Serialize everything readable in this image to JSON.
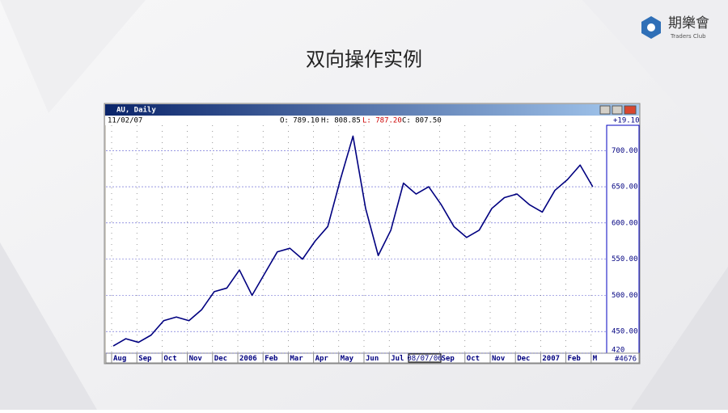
{
  "slide": {
    "title": "双向操作实例",
    "logo_name": "期樂會",
    "logo_tagline": "Traders Club"
  },
  "window": {
    "title": "AU, Daily",
    "date": "11/02/07",
    "open": "O: 789.10",
    "high": "H: 808.85",
    "low": "L: 787.20",
    "close": "C: 807.50",
    "change": "+19.10",
    "cursor_date": "08/07/06",
    "bar_count": "#4676"
  },
  "chart_data": {
    "type": "line",
    "categories": [
      "Aug",
      null,
      "Sep",
      null,
      "Oct",
      null,
      "Nov",
      null,
      "Dec",
      null,
      "2006",
      null,
      "Feb",
      null,
      "Mar",
      null,
      "Apr",
      null,
      "May",
      null,
      "Jun",
      null,
      "Jul",
      null,
      null,
      null,
      "Sep",
      null,
      "Oct",
      null,
      "Nov",
      null,
      "Dec",
      null,
      "2007",
      null,
      "Feb",
      null,
      "M"
    ],
    "series": [
      {
        "name": "AU",
        "color": "#000080",
        "values": [
          430,
          440,
          435,
          445,
          465,
          470,
          465,
          480,
          505,
          510,
          535,
          500,
          530,
          560,
          565,
          550,
          575,
          595,
          660,
          720,
          620,
          555,
          590,
          655,
          640,
          650,
          625,
          595,
          580,
          590,
          620,
          635,
          640,
          625,
          615,
          645,
          660,
          680,
          650
        ]
      }
    ],
    "ylim": [
      420,
      735
    ],
    "yticks": [
      {
        "value": 420,
        "label": "420"
      },
      {
        "value": 450,
        "label": "450.00"
      },
      {
        "value": 500,
        "label": "500.00"
      },
      {
        "value": 550,
        "label": "550.00"
      },
      {
        "value": 600,
        "label": "600.00"
      },
      {
        "value": 650,
        "label": "650.00"
      },
      {
        "value": 700,
        "label": "700.00"
      }
    ],
    "grid": true
  }
}
